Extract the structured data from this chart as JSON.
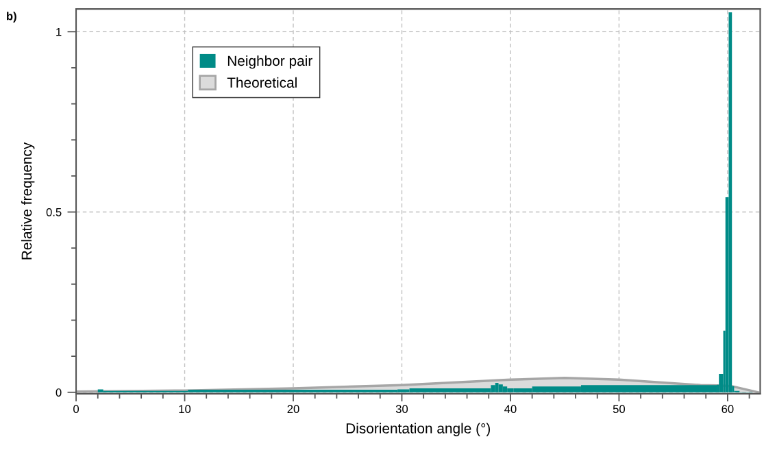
{
  "chart_data": {
    "type": "histogram",
    "xlabel": "Disorientation angle (°)",
    "ylabel": "Relative frequency",
    "annotations": [
      "b)"
    ],
    "series": [
      {
        "name": "Theoretical",
        "type": "area",
        "color": "#a6a6a6",
        "x": [
          0,
          10,
          20,
          30,
          40,
          45,
          50,
          57.5,
          59,
          60.4,
          62.8
        ],
        "values": [
          0.002,
          0.005,
          0.011,
          0.02,
          0.035,
          0.04,
          0.035,
          0.02,
          0.019,
          0.017,
          0.0
        ]
      },
      {
        "name": "Neighbor pair",
        "color": "#008b87",
        "bins": [
          2,
          2.5,
          10.3,
          29.6,
          30.7,
          38.2,
          38.6,
          38.9,
          39.3,
          39.7,
          40.3,
          42,
          46.5,
          59,
          59.2,
          59.6,
          59.8,
          60.1,
          60.4,
          60.6,
          61.1,
          62.3
        ],
        "values": [
          0.008,
          0.004,
          0.007,
          0.008,
          0.011,
          0.02,
          0.026,
          0.022,
          0.016,
          0.011,
          0.011,
          0.016,
          0.02,
          0.021,
          0.051,
          0.171,
          0.541,
          1.054,
          0.017,
          0.004,
          0.001
        ]
      }
    ],
    "xlim": [
      0,
      63
    ],
    "ylim": [
      -0.004,
      1.063
    ],
    "xticks": [
      0,
      {
        "value": 2,
        "label": null
      },
      {
        "value": 4,
        "label": null
      },
      {
        "value": 6,
        "label": null
      },
      {
        "value": 8,
        "label": null
      },
      10,
      {
        "value": 12,
        "label": null
      },
      {
        "value": 14,
        "label": null
      },
      {
        "value": 16,
        "label": null
      },
      {
        "value": 18,
        "label": null
      },
      20,
      {
        "value": 22,
        "label": null
      },
      {
        "value": 24,
        "label": null
      },
      {
        "value": 26,
        "label": null
      },
      {
        "value": 28,
        "label": null
      },
      30,
      {
        "value": 32,
        "label": null
      },
      {
        "value": 34,
        "label": null
      },
      {
        "value": 36,
        "label": null
      },
      {
        "value": 38,
        "label": null
      },
      40,
      {
        "value": 42,
        "label": null
      },
      {
        "value": 44,
        "label": null
      },
      {
        "value": 46,
        "label": null
      },
      {
        "value": 48,
        "label": null
      },
      50,
      {
        "value": 52,
        "label": null
      },
      {
        "value": 54,
        "label": null
      },
      {
        "value": 56,
        "label": null
      },
      {
        "value": 58,
        "label": null
      },
      60,
      {
        "value": 62,
        "label": null
      }
    ],
    "yticks": [
      0,
      {
        "value": 0.1,
        "label": null
      },
      {
        "value": 0.2,
        "label": null
      },
      {
        "value": 0.3,
        "label": null
      },
      {
        "value": 0.4,
        "label": null
      },
      0.5,
      {
        "value": 0.6,
        "label": null
      },
      {
        "value": 0.7,
        "label": null
      },
      {
        "value": 0.8,
        "label": null
      },
      {
        "value": 0.9,
        "label": null
      },
      1
    ],
    "grid": true,
    "legend": "top left"
  }
}
